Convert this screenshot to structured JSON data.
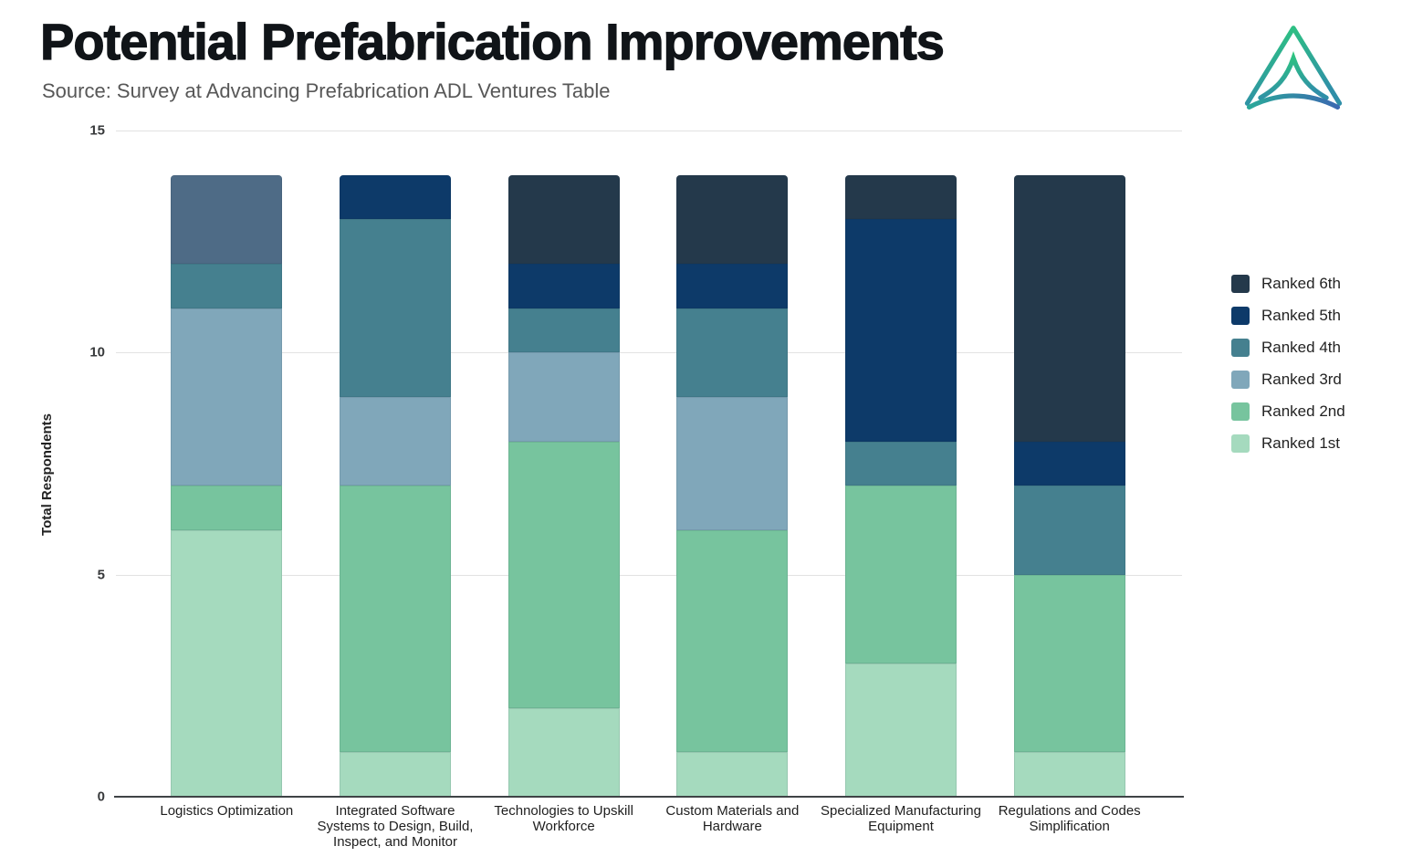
{
  "header": {
    "title": "Potential Prefabrication Improvements",
    "source": "Source: Survey at Advancing Prefabrication ADL Ventures Table"
  },
  "logo": {
    "name": "adl-ventures-logo",
    "colors": {
      "green": "#2ec77e",
      "teal": "#2aa89a",
      "blue": "#3b69b0"
    }
  },
  "chart_data": {
    "type": "bar",
    "stacked": true,
    "title": "Potential Prefabrication Improvements",
    "xlabel": "",
    "ylabel": "Total Respondents",
    "ylim": [
      0,
      15
    ],
    "yticks": [
      0,
      5,
      10,
      15
    ],
    "grid": true,
    "legend_position": "right",
    "legend_order": [
      "Ranked 6th",
      "Ranked 5th",
      "Ranked 4th",
      "Ranked 3rd",
      "Ranked 2nd",
      "Ranked 1st"
    ],
    "categories": [
      "Logistics Optimization",
      "Integrated Software Systems to Design, Build, Inspect, and Monitor",
      "Technologies to Upskill Workforce",
      "Custom Materials and Hardware",
      "Specialized Manufacturing Equipment",
      "Regulations and Codes Simplification"
    ],
    "series": [
      {
        "name": "Ranked 1st",
        "color": "#a5dabe",
        "values": [
          6,
          1,
          2,
          1,
          3,
          1
        ]
      },
      {
        "name": "Ranked 2nd",
        "color": "#77c49e",
        "values": [
          1,
          6,
          6,
          5,
          4,
          4
        ]
      },
      {
        "name": "Ranked 3rd",
        "color": "#80a7ba",
        "values": [
          4,
          2,
          2,
          3,
          0,
          0
        ]
      },
      {
        "name": "Ranked 4th",
        "color": "#45808f",
        "values": [
          1,
          4,
          1,
          2,
          1,
          2
        ]
      },
      {
        "name": "Ranked 5th",
        "color": "#0d3a69",
        "values": [
          0,
          1,
          1,
          1,
          5,
          1
        ]
      },
      {
        "name": "Ranked 6th",
        "color": "#24394b",
        "values": [
          2,
          0,
          2,
          2,
          1,
          6
        ]
      }
    ],
    "segment_color_overrides": [
      {
        "category_index": 0,
        "series": "Ranked 6th",
        "color": "#4e6b86"
      }
    ],
    "column_totals": [
      14,
      14,
      14,
      14,
      14,
      14
    ]
  }
}
